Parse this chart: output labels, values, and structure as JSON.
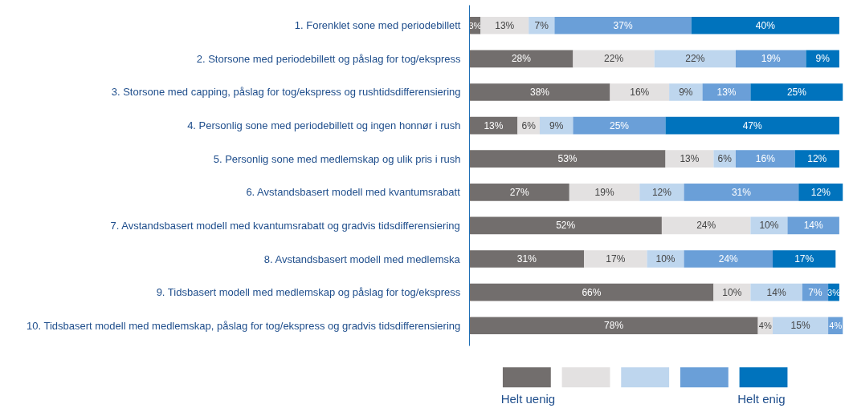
{
  "chart_data": {
    "type": "bar",
    "orientation": "horizontal",
    "stacked": true,
    "legend": "bottom",
    "tick_labels": "y",
    "grid": false,
    "categories": [
      "1. Forenklet sone med periodebillett",
      "2. Storsone med periodebillett og påslag for tog/ekspress",
      "3. Storsone med capping, påslag for tog/ekspress og rushtidsdifferensiering",
      "4. Personlig sone med periodebillett og ingen honnør i rush",
      "5. Personlig sone med medlemskap og ulik pris i rush",
      "6. Avstandsbasert modell med kvantumsrabatt",
      "7. Avstandsbasert modell med kvantumsrabatt og gradvis tidsdifferensiering",
      "8. Avstandsbasert modell med medlemska",
      "9. Tidsbasert modell med medlemskap og påslag for tog/ekspress",
      "10. Tidsbasert modell med medlemskap, påslag for tog/ekspress og gradvis tidsdifferensiering"
    ],
    "series": [
      {
        "name": "Helt uenig",
        "color": "#726e6d",
        "values": [
          3,
          28,
          38,
          13,
          53,
          27,
          52,
          31,
          66,
          78
        ],
        "value_labels": [
          "3%",
          "28%",
          "38%",
          "13%",
          "53%",
          "27%",
          "52%",
          "31%",
          "66%",
          "78%"
        ]
      },
      {
        "color": "#e3e1e1",
        "values": [
          13,
          22,
          16,
          6,
          13,
          19,
          24,
          17,
          10,
          4
        ],
        "value_labels": [
          "13%",
          "22%",
          "16%",
          "6%",
          "13%",
          "19%",
          "24%",
          "17%",
          "10%",
          "4%"
        ]
      },
      {
        "color": "#bed6ee",
        "values": [
          7,
          22,
          9,
          9,
          6,
          12,
          10,
          10,
          14,
          15
        ],
        "value_labels": [
          "7%",
          "22%",
          "9%",
          "9%",
          "6%",
          "12%",
          "10%",
          "10%",
          "14%",
          "15%"
        ]
      },
      {
        "color": "#6a9fd8",
        "values": [
          37,
          19,
          13,
          25,
          16,
          31,
          14,
          24,
          7,
          4
        ],
        "value_labels": [
          "37%",
          "19%",
          "13%",
          "25%",
          "16%",
          "31%",
          "14%",
          "24%",
          "7%",
          "4%"
        ]
      },
      {
        "name": "Helt enig",
        "color": "#0073bd",
        "values": [
          40,
          9,
          25,
          47,
          12,
          12,
          null,
          17,
          3,
          null
        ],
        "value_labels": [
          "40%",
          "9%",
          "25%",
          "47%",
          "12%",
          "12%",
          null,
          "17%",
          "3%",
          null
        ]
      }
    ]
  }
}
